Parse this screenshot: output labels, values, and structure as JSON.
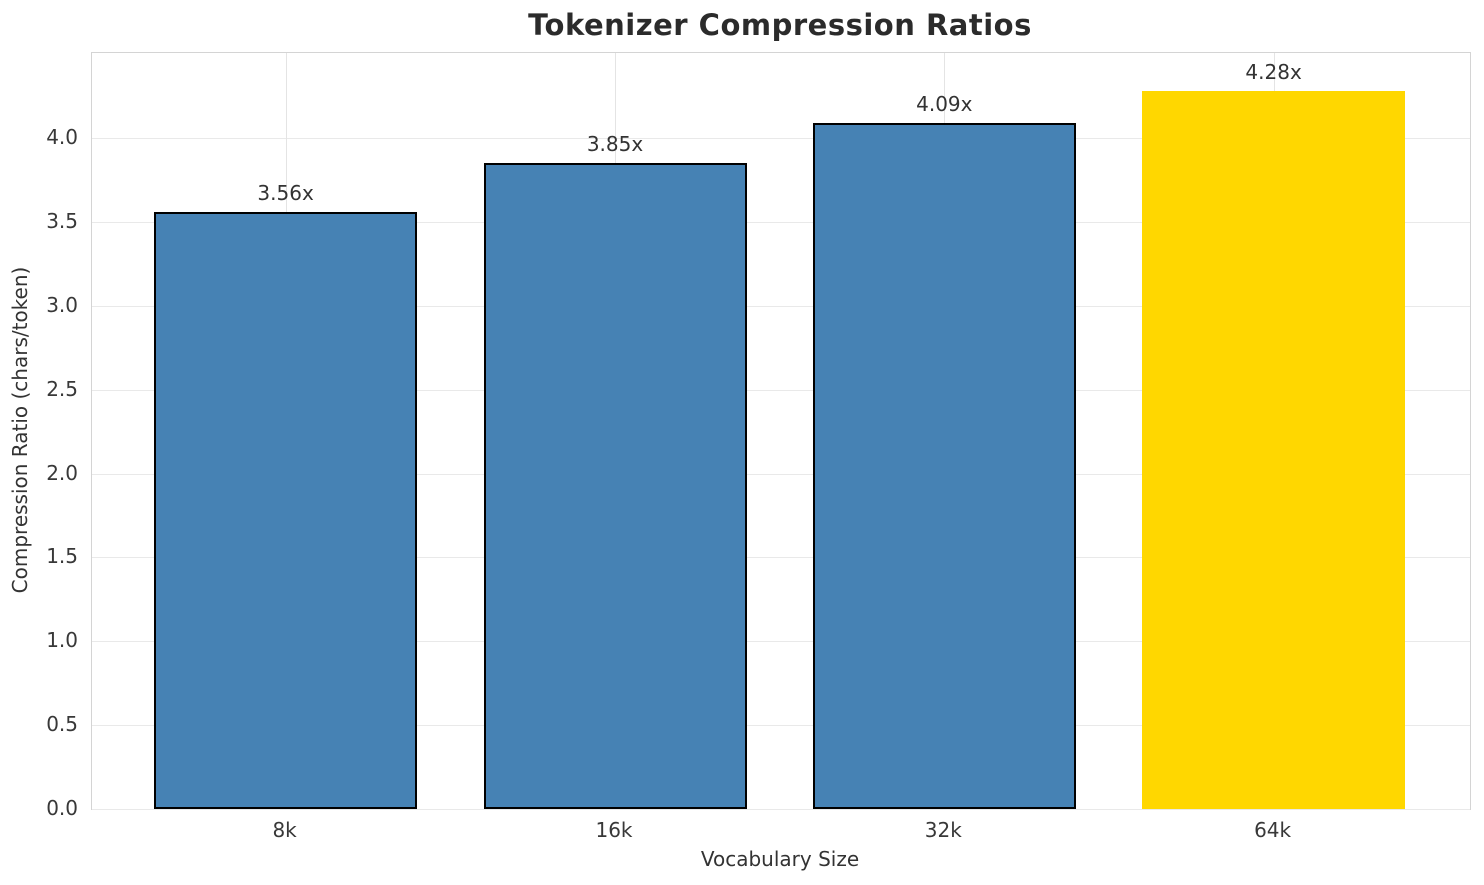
{
  "title": "Tokenizer Compression Ratios",
  "chart_data": {
    "type": "bar",
    "title": "Tokenizer Compression Ratios",
    "xlabel": "Vocabulary Size",
    "ylabel": "Compression Ratio (chars/token)",
    "categories": [
      "8k",
      "16k",
      "32k",
      "64k"
    ],
    "values": [
      3.56,
      3.85,
      4.09,
      4.28
    ],
    "bar_labels": [
      "3.56x",
      "3.85x",
      "4.09x",
      "4.28x"
    ],
    "ylim": [
      0,
      4.507
    ],
    "yticks": [
      0.0,
      0.5,
      1.0,
      1.5,
      2.0,
      2.5,
      3.0,
      3.5,
      4.0
    ],
    "ytick_labels": [
      "0.0",
      "0.5",
      "1.0",
      "1.5",
      "2.0",
      "2.5",
      "3.0",
      "3.5",
      "4.0"
    ],
    "grid": true,
    "legend": "none",
    "bar_colors": [
      "#4682B4",
      "#4682B4",
      "#4682B4",
      "#FFD700"
    ],
    "bar_edge_colors": [
      "#000000",
      "#000000",
      "#000000",
      "none"
    ],
    "highlight_index": 3
  },
  "colors": {
    "bar_blue": "#4682B4",
    "bar_gold": "#FFD700",
    "bar_edge": "#000000",
    "grid": "#e9e9e9",
    "spine": "#d4d4d4",
    "text": "#333333",
    "title_text": "#2b2b2b"
  }
}
